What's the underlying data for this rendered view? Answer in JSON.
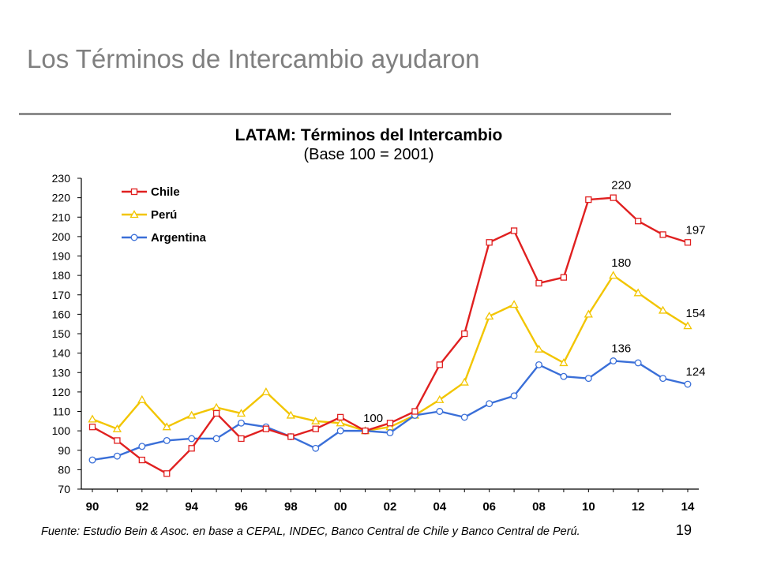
{
  "slide": {
    "title": "Los Términos de Intercambio ayudaron",
    "page_number": "19"
  },
  "chart_data": {
    "type": "line",
    "title": "LATAM: Términos del Intercambio",
    "subtitle": "(Base 100 = 2001)",
    "source": "Fuente: Estudio Bein & Asoc. en base a CEPAL, INDEC, Banco Central de Chile y Banco Central de Perú.",
    "xlabel": "",
    "ylabel": "",
    "x": [
      1990,
      1991,
      1992,
      1993,
      1994,
      1995,
      1996,
      1997,
      1998,
      1999,
      2000,
      2001,
      2002,
      2003,
      2004,
      2005,
      2006,
      2007,
      2008,
      2009,
      2010,
      2011,
      2012,
      2013,
      2014
    ],
    "x_tick_values": [
      1990,
      1992,
      1994,
      1996,
      1998,
      2000,
      2002,
      2004,
      2006,
      2008,
      2010,
      2012,
      2014
    ],
    "x_tick_labels": [
      "90",
      "92",
      "94",
      "96",
      "98",
      "00",
      "02",
      "04",
      "06",
      "08",
      "10",
      "12",
      "14"
    ],
    "xlim": [
      1990,
      2014
    ],
    "ylim": [
      70,
      230
    ],
    "y_ticks": [
      70,
      80,
      90,
      100,
      110,
      120,
      130,
      140,
      150,
      160,
      170,
      180,
      190,
      200,
      210,
      220,
      230
    ],
    "grid": false,
    "legend_position": "top-left",
    "series": [
      {
        "name": "Chile",
        "color": "#e02020",
        "marker": "square",
        "values": [
          102,
          95,
          85,
          78,
          91,
          109,
          96,
          101,
          97,
          101,
          107,
          100,
          104,
          110,
          134,
          150,
          197,
          203,
          176,
          179,
          219,
          220,
          208,
          201,
          197
        ]
      },
      {
        "name": "Perú",
        "color": "#f2c500",
        "marker": "triangle",
        "values": [
          106,
          101,
          116,
          102,
          108,
          112,
          109,
          120,
          108,
          105,
          104,
          100,
          102,
          108,
          116,
          125,
          159,
          165,
          142,
          135,
          160,
          180,
          171,
          162,
          154
        ]
      },
      {
        "name": "Argentina",
        "color": "#3a6fd8",
        "marker": "circle",
        "values": [
          85,
          87,
          92,
          95,
          96,
          96,
          104,
          102,
          97,
          91,
          100,
          100,
          99,
          108,
          110,
          107,
          114,
          118,
          134,
          128,
          127,
          136,
          135,
          127,
          124
        ]
      }
    ],
    "data_labels": [
      {
        "text": "100",
        "x": 2001,
        "y": 100
      },
      {
        "text": "220",
        "x": 2011,
        "y": 220
      },
      {
        "text": "197",
        "x": 2014,
        "y": 197
      },
      {
        "text": "180",
        "x": 2011,
        "y": 180
      },
      {
        "text": "154",
        "x": 2014,
        "y": 154
      },
      {
        "text": "136",
        "x": 2011,
        "y": 136
      },
      {
        "text": "124",
        "x": 2014,
        "y": 124
      }
    ]
  }
}
